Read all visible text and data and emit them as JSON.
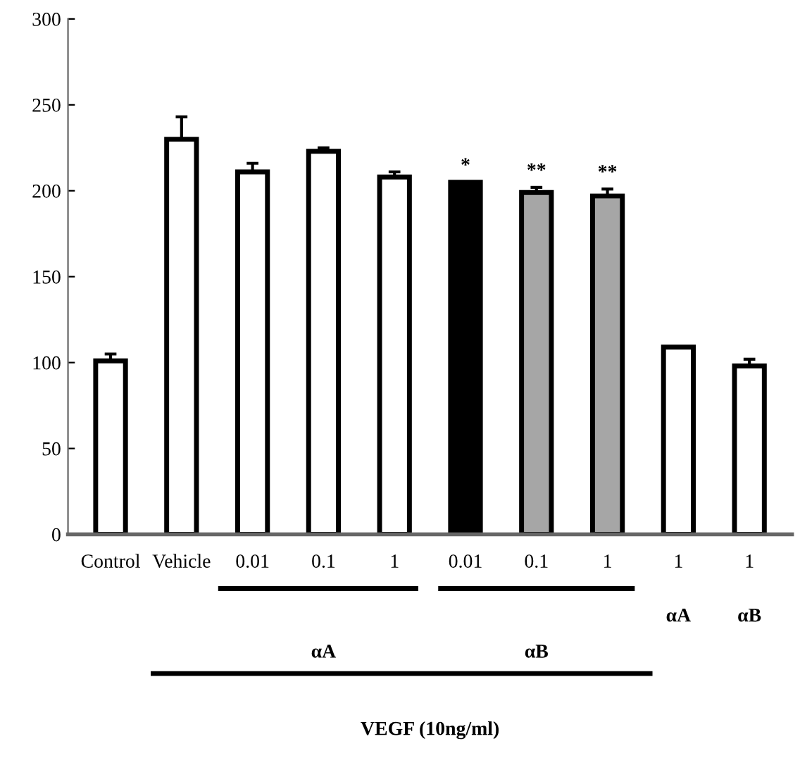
{
  "chart_data": {
    "type": "bar",
    "categories": [
      "Control",
      "Vehicle",
      "0.01",
      "0.1",
      "1",
      "0.01",
      "0.1",
      "1",
      "1",
      "1"
    ],
    "values": [
      101,
      230,
      211,
      223,
      208,
      205,
      199,
      197,
      109,
      98
    ],
    "colors": [
      "#ffffff",
      "#ffffff",
      "#ffffff",
      "#ffffff",
      "#ffffff",
      "#000000",
      "#a6a6a6",
      "#a6a6a6",
      "#ffffff",
      "#ffffff"
    ],
    "errors": [
      [
        101,
        105
      ],
      [
        230,
        243
      ],
      [
        211,
        216
      ],
      [
        223,
        225
      ],
      [
        208,
        211
      ],
      null,
      [
        199,
        202
      ],
      [
        197,
        201
      ],
      null,
      [
        98,
        102
      ]
    ],
    "value_labels": [
      null,
      null,
      null,
      null,
      null,
      "*",
      "**",
      "**",
      null,
      null
    ],
    "annotations": [
      "αA",
      "αB",
      "αA",
      "αB",
      "VEGF (10ng/ml)"
    ],
    "ylim": [
      0,
      300
    ],
    "yticks": [
      0,
      50,
      100,
      150,
      200,
      250,
      300
    ],
    "grid": false,
    "legend": false
  }
}
